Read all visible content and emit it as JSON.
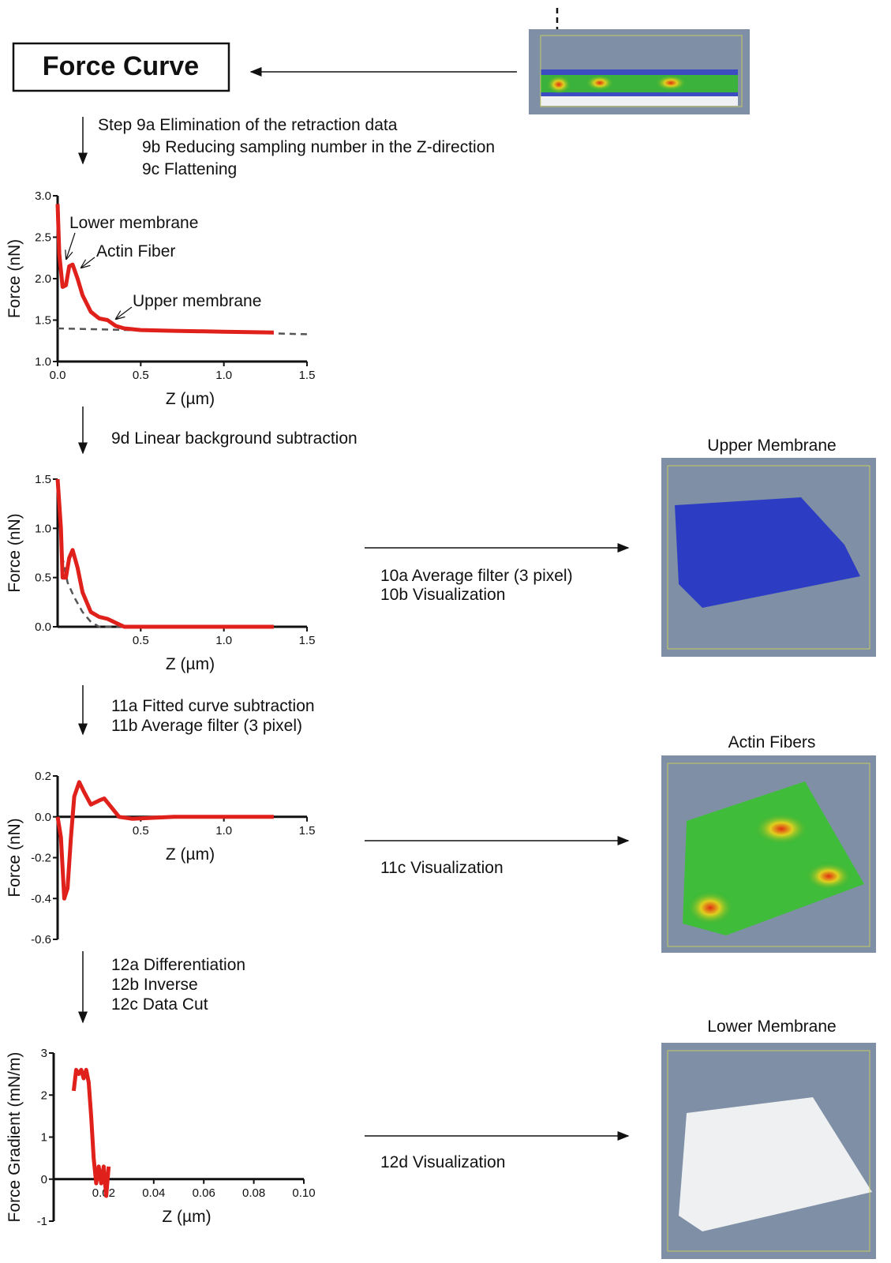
{
  "header": {
    "title": "Force Curve"
  },
  "steps": {
    "step9": [
      "Step 9a Elimination of the retraction data",
      "9b Reducing sampling number in the Z-direction",
      "9c Flattening"
    ],
    "step9d": "9d Linear background subtraction",
    "step11": [
      "11a Fitted curve subtraction",
      "11b Average filter (3 pixel)"
    ],
    "step12": [
      "12a Differentiation",
      "12b Inverse",
      "12c Data Cut"
    ]
  },
  "panels": [
    {
      "title": "Upper Membrane",
      "process": [
        "10a Average filter (3 pixel)",
        "10b Visualization"
      ]
    },
    {
      "title": "Actin Fibers",
      "process": [
        "11c Visualization"
      ]
    },
    {
      "title": "Lower Membrane",
      "process": [
        "12d Visualization"
      ]
    }
  ],
  "charts": [
    {
      "type": "line",
      "ylabel": "Force (nN)",
      "xlabel": "Z (µm)",
      "xlim": [
        0,
        1.5
      ],
      "ylim": [
        1,
        3
      ],
      "xticks": [
        {
          "value": 0,
          "label": "0.0"
        },
        0.5,
        {
          "value": 1,
          "label": "1.0"
        },
        1.5
      ],
      "yticks": [
        {
          "value": 1,
          "label": "1.0"
        },
        1.5,
        {
          "value": 2,
          "label": "2.0"
        },
        2.5,
        {
          "value": 3,
          "label": "3.0"
        }
      ],
      "annotations": [
        "Lower membrane",
        "Actin Fiber",
        "Upper membrane"
      ],
      "series": [
        {
          "color": "#555555",
          "dashed": true,
          "x": [
            0,
            1.5
          ],
          "values": [
            1.4,
            1.33
          ]
        },
        {
          "color": "#e0201b",
          "x": [
            0,
            0.01,
            0.03,
            0.05,
            0.07,
            0.09,
            0.12,
            0.15,
            0.2,
            0.25,
            0.3,
            0.35,
            0.4,
            0.5,
            0.7,
            1.0,
            1.3
          ],
          "values": [
            2.9,
            2.3,
            1.9,
            1.92,
            2.15,
            2.17,
            2.0,
            1.8,
            1.6,
            1.52,
            1.5,
            1.43,
            1.4,
            1.38,
            1.37,
            1.36,
            1.35
          ]
        }
      ]
    },
    {
      "type": "line",
      "ylabel": "Force (nN)",
      "xlabel": "Z (µm)",
      "xlim": [
        0,
        1.5
      ],
      "ylim": [
        0,
        1.5
      ],
      "xticks": [
        0.5,
        {
          "value": 1,
          "label": "1.0"
        },
        1.5
      ],
      "yticks": [
        {
          "value": 0,
          "label": "0.0"
        },
        0.5,
        {
          "value": 1,
          "label": "1.0"
        },
        1.5
      ],
      "series": [
        {
          "color": "#555555",
          "dashed": true,
          "x": [
            0,
            0.03,
            0.06,
            0.1,
            0.15,
            0.2,
            0.25,
            1.3
          ],
          "values": [
            1.5,
            0.7,
            0.45,
            0.3,
            0.15,
            0.05,
            0,
            0
          ]
        },
        {
          "color": "#e0201b",
          "x": [
            0,
            0.02,
            0.03,
            0.05,
            0.07,
            0.09,
            0.12,
            0.15,
            0.2,
            0.25,
            0.3,
            0.35,
            0.4,
            0.7,
            1.0,
            1.3
          ],
          "values": [
            1.5,
            1.0,
            0.5,
            0.5,
            0.7,
            0.78,
            0.6,
            0.35,
            0.15,
            0.1,
            0.08,
            0.04,
            0,
            0,
            0,
            0
          ]
        }
      ]
    },
    {
      "type": "line",
      "ylabel": "Force (nN)",
      "xlabel": "Z (µm)",
      "xlim": [
        0,
        1.5
      ],
      "ylim": [
        -0.6,
        0.2
      ],
      "xticks": [
        0.5,
        {
          "value": 1,
          "label": "1.0"
        },
        1.5
      ],
      "yticks": [
        {
          "value": -0.6,
          "label": "-0.6"
        },
        {
          "value": -0.4,
          "label": "-0.4"
        },
        {
          "value": -0.2,
          "label": "-0.2"
        },
        {
          "value": 0,
          "label": "0.0"
        },
        0.2
      ],
      "series": [
        {
          "color": "#e0201b",
          "x": [
            0,
            0.02,
            0.04,
            0.06,
            0.08,
            0.1,
            0.13,
            0.16,
            0.2,
            0.25,
            0.28,
            0.32,
            0.37,
            0.45,
            0.7,
            1.0,
            1.3
          ],
          "values": [
            0,
            -0.1,
            -0.4,
            -0.35,
            -0.1,
            0.1,
            0.17,
            0.12,
            0.06,
            0.08,
            0.09,
            0.05,
            0,
            -0.01,
            0,
            0,
            0
          ]
        }
      ]
    },
    {
      "type": "line",
      "ylabel": "Force Gradient (mN/m)",
      "xlabel": "Z (µm)",
      "xlim": [
        0,
        0.1
      ],
      "ylim": [
        -1,
        3
      ],
      "xticks": [
        0.02,
        0.04,
        0.06,
        0.08,
        {
          "value": 0.1,
          "label": "0.10"
        }
      ],
      "yticks": [
        -1,
        0,
        1,
        2,
        3
      ],
      "series": [
        {
          "color": "#e0201b",
          "x": [
            0.008,
            0.009,
            0.01,
            0.011,
            0.012,
            0.013,
            0.014,
            0.015,
            0.016,
            0.017,
            0.018,
            0.019,
            0.02,
            0.021,
            0.022
          ],
          "values": [
            2.1,
            2.6,
            2.5,
            2.6,
            2.4,
            2.6,
            2.3,
            1.5,
            0.5,
            -0.1,
            0.3,
            -0.1,
            0.3,
            -0.4,
            0.3
          ]
        }
      ]
    }
  ]
}
